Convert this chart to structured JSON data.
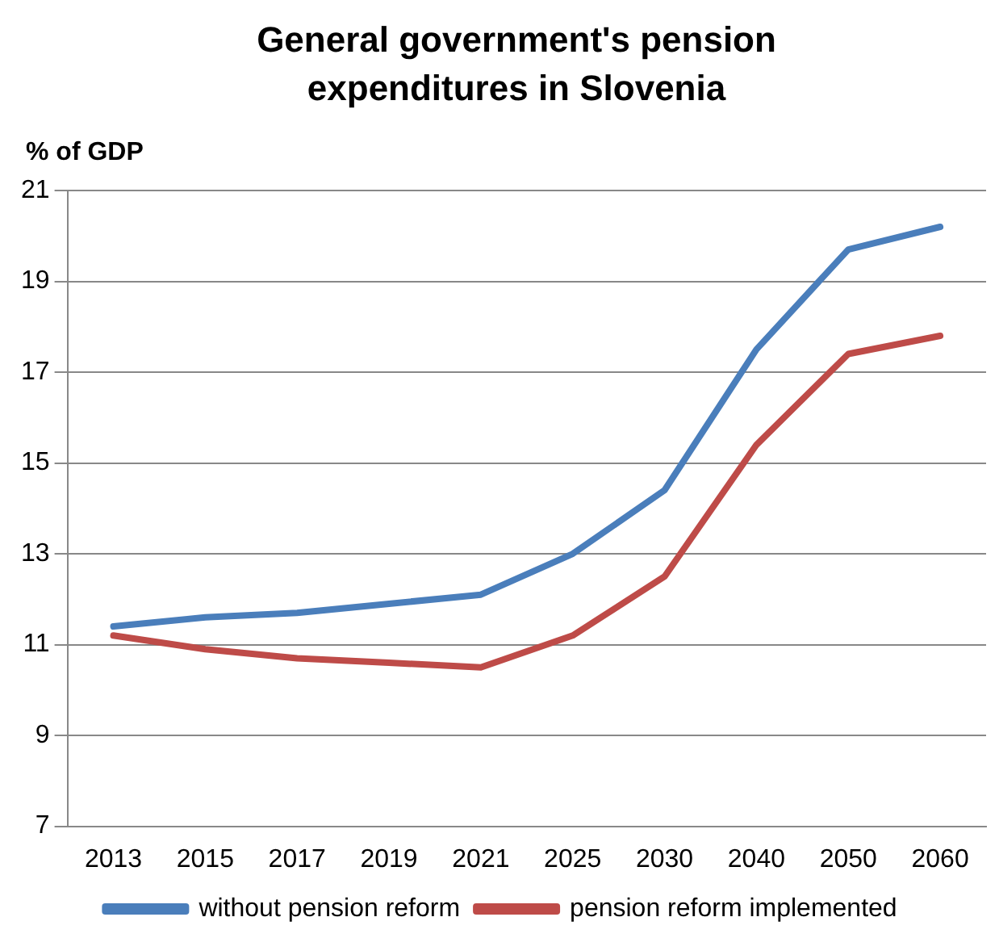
{
  "chart_data": {
    "type": "line",
    "title": "General government's pension expenditures in Slovenia",
    "ylabel": "% of GDP",
    "categories": [
      "2013",
      "2015",
      "2017",
      "2019",
      "2021",
      "2025",
      "2030",
      "2040",
      "2050",
      "2060"
    ],
    "series": [
      {
        "name": "without pension reform",
        "color": "#4a7ebb",
        "values": [
          11.4,
          11.6,
          11.7,
          11.9,
          12.1,
          13.0,
          14.4,
          17.5,
          19.7,
          20.2
        ]
      },
      {
        "name": "pension reform implemented",
        "color": "#be4b48",
        "values": [
          11.2,
          10.9,
          10.7,
          10.6,
          10.5,
          11.2,
          12.5,
          15.4,
          17.4,
          17.8
        ]
      }
    ],
    "ylim": [
      7,
      21
    ],
    "yticks": [
      7,
      9,
      11,
      13,
      15,
      17,
      19,
      21
    ],
    "grid": "y",
    "legend": "bottom",
    "marker": "none",
    "line_style": "solid"
  }
}
